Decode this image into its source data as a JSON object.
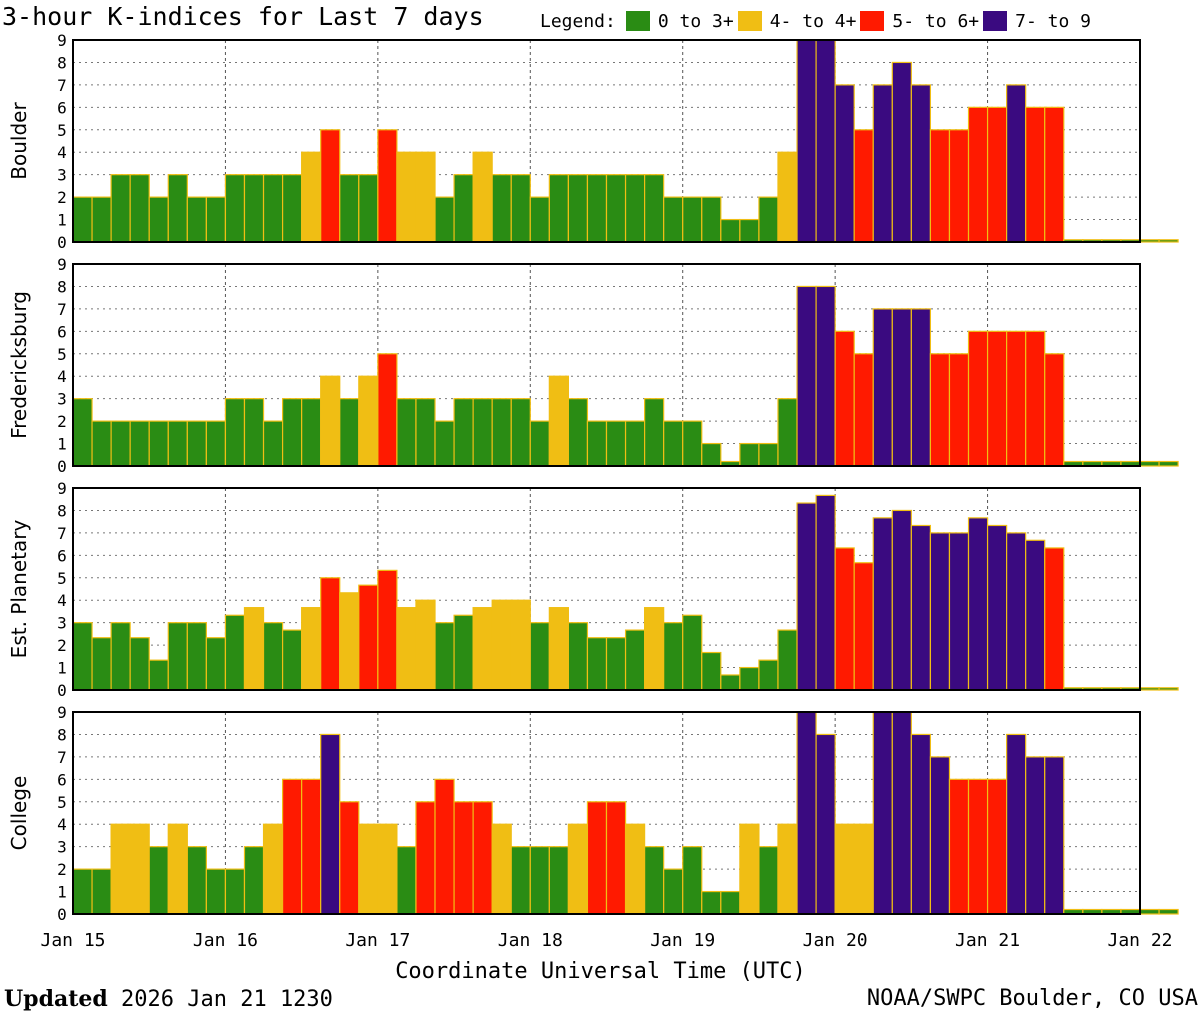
{
  "title": "3-hour K-indices for Last 7 days",
  "legend": {
    "label": "Legend:",
    "items": [
      {
        "label": "0 to 3+",
        "color": "#2a8c14"
      },
      {
        "label": "4- to 4+",
        "color": "#f0be14"
      },
      {
        "label": "5- to 6+",
        "color": "#ff1a00"
      },
      {
        "label": "7- to 9",
        "color": "#3a0a80"
      }
    ]
  },
  "footer": {
    "updated_label": "Updated",
    "updated_value": "2026 Jan 21 1230",
    "credit": "NOAA/SWPC Boulder, CO USA"
  },
  "chart_data": {
    "type": "bar",
    "xlabel": "Coordinate Universal Time (UTC)",
    "x_ticks": [
      "Jan 15",
      "Jan 16",
      "Jan 17",
      "Jan 18",
      "Jan 19",
      "Jan 20",
      "Jan 21",
      "Jan 22"
    ],
    "interval_hours": 3,
    "ylim": [
      0,
      9
    ],
    "y_ticks": [
      0,
      1,
      2,
      3,
      4,
      5,
      6,
      7,
      8,
      9
    ],
    "grid": true,
    "color_thresholds": {
      "yellow_from": 3.67,
      "red_from": 4.67,
      "purple_from": 6.67
    },
    "panels": [
      {
        "name": "Boulder",
        "values": [
          2,
          2,
          3,
          3,
          2,
          3,
          2,
          2,
          3,
          3,
          3,
          3,
          4,
          5,
          3,
          3,
          5,
          4,
          4,
          2,
          3,
          4,
          3,
          3,
          2,
          3,
          3,
          3,
          3,
          3,
          3,
          2,
          2,
          2,
          1,
          1,
          2,
          4,
          9,
          9,
          7,
          5,
          7,
          8,
          7,
          5,
          5,
          6,
          6,
          7,
          6,
          6,
          0,
          0,
          0,
          0,
          0,
          0
        ]
      },
      {
        "name": "Fredericksburg",
        "values": [
          3,
          2,
          2,
          2,
          2,
          2,
          2,
          2,
          3,
          3,
          2,
          3,
          3,
          4,
          3,
          4,
          5,
          3,
          3,
          2,
          3,
          3,
          3,
          3,
          2,
          4,
          3,
          2,
          2,
          2,
          3,
          2,
          2,
          1,
          0.2,
          1,
          1,
          3,
          8,
          8,
          6,
          5,
          7,
          7,
          7,
          5,
          5,
          6,
          6,
          6,
          6,
          5,
          0.2,
          0.2,
          0.2,
          0.2,
          0.2,
          0.2
        ]
      },
      {
        "name": "Est. Planetary",
        "values": [
          3,
          2.33,
          3,
          2.33,
          1.33,
          3,
          3,
          2.33,
          3.33,
          3.67,
          3,
          2.67,
          3.67,
          5,
          4.33,
          4.67,
          5.33,
          3.67,
          4,
          3,
          3.33,
          3.67,
          4,
          4,
          3,
          3.67,
          3,
          2.33,
          2.33,
          2.67,
          3.67,
          3,
          3.33,
          1.67,
          0.67,
          1,
          1.33,
          2.67,
          8.33,
          8.67,
          6.33,
          5.67,
          7.67,
          8,
          7.33,
          7,
          7,
          7.67,
          7.33,
          7,
          6.67,
          6.33,
          0,
          0,
          0,
          0,
          0,
          0
        ]
      },
      {
        "name": "College",
        "values": [
          2,
          2,
          4,
          4,
          3,
          4,
          3,
          2,
          2,
          3,
          4,
          6,
          6,
          8,
          5,
          4,
          4,
          3,
          5,
          6,
          5,
          5,
          4,
          3,
          3,
          3,
          4,
          5,
          5,
          4,
          3,
          2,
          3,
          1,
          1,
          4,
          3,
          4,
          9,
          8,
          4,
          4,
          9,
          9,
          8,
          7,
          6,
          6,
          6,
          8,
          7,
          7,
          0.2,
          0.2,
          0.2,
          0.2,
          0.2,
          0.2
        ]
      }
    ]
  }
}
